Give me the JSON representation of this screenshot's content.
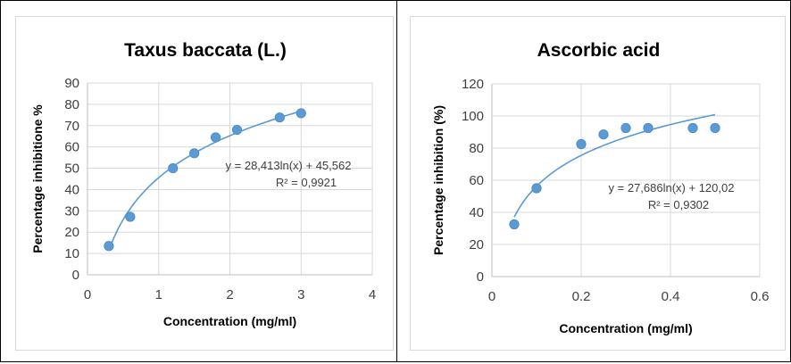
{
  "chart_data": [
    {
      "type": "scatter",
      "title": "Taxus baccata (L.)",
      "xlabel": "Concentration (mg/ml)",
      "ylabel": "Percentage inhibitione %",
      "xlim": [
        0,
        4
      ],
      "ylim": [
        0,
        90
      ],
      "xticks": [
        0,
        1,
        2,
        3,
        4
      ],
      "yticks": [
        0,
        10,
        20,
        30,
        40,
        50,
        60,
        70,
        80,
        90
      ],
      "x": [
        0.3,
        0.6,
        1.2,
        1.5,
        1.8,
        2.1,
        2.7,
        3.0
      ],
      "y": [
        13.5,
        27.2,
        50.0,
        57.0,
        64.5,
        68.0,
        73.8,
        75.8
      ],
      "trendline": {
        "type": "log",
        "a": 28.413,
        "b": 45.562,
        "x_range": [
          0.3,
          3.0
        ]
      },
      "equation": "y = 28,413ln(x) + 45,562",
      "r2": "R² = 0,9921",
      "grid": true,
      "legend": "none",
      "color": "#5b9bd5"
    },
    {
      "type": "scatter",
      "title": "Ascorbic acid",
      "xlabel": "Concentration (mg/ml)",
      "ylabel": "Percentage inhibition (%)",
      "xlim": [
        0,
        0.6
      ],
      "ylim": [
        0,
        120
      ],
      "xticks": [
        0,
        0.2,
        0.4,
        0.6
      ],
      "yticks": [
        0,
        20,
        40,
        60,
        80,
        100,
        120
      ],
      "x": [
        0.05,
        0.1,
        0.2,
        0.25,
        0.3,
        0.35,
        0.45,
        0.5
      ],
      "y": [
        32.5,
        55.0,
        82.5,
        88.5,
        92.5,
        92.5,
        92.5,
        92.5
      ],
      "trendline": {
        "type": "log",
        "a": 27.686,
        "b": 120.02,
        "x_range": [
          0.05,
          0.5
        ]
      },
      "equation": "y = 27,686ln(x) + 120,02",
      "r2": "R² = 0,9302",
      "grid": true,
      "legend": "none",
      "color": "#5b9bd5"
    }
  ]
}
